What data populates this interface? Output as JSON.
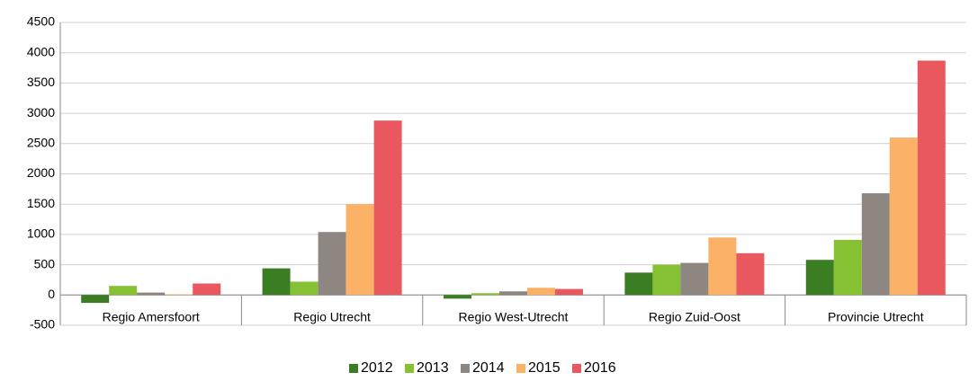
{
  "chart_data": {
    "type": "bar",
    "categories": [
      "Regio Amersfoort",
      "Regio Utrecht",
      "Regio West-Utrecht",
      "Regio Zuid-Oost",
      "Provincie Utrecht"
    ],
    "series": [
      {
        "name": "2012",
        "color": "#3a7d23",
        "values": [
          -130,
          440,
          -60,
          370,
          580
        ]
      },
      {
        "name": "2013",
        "color": "#86c033",
        "values": [
          150,
          220,
          30,
          500,
          910
        ]
      },
      {
        "name": "2014",
        "color": "#8e8680",
        "values": [
          40,
          1040,
          60,
          530,
          1680
        ]
      },
      {
        "name": "2015",
        "color": "#fbb267",
        "values": [
          10,
          1500,
          120,
          950,
          2600
        ]
      },
      {
        "name": "2016",
        "color": "#e9575f",
        "values": [
          190,
          2880,
          100,
          690,
          3870
        ]
      }
    ],
    "ylim": [
      -500,
      4500
    ],
    "yticks": [
      -500,
      0,
      500,
      1000,
      1500,
      2000,
      2500,
      3000,
      3500,
      4000,
      4500
    ],
    "grid": true,
    "legend": "bottom"
  }
}
